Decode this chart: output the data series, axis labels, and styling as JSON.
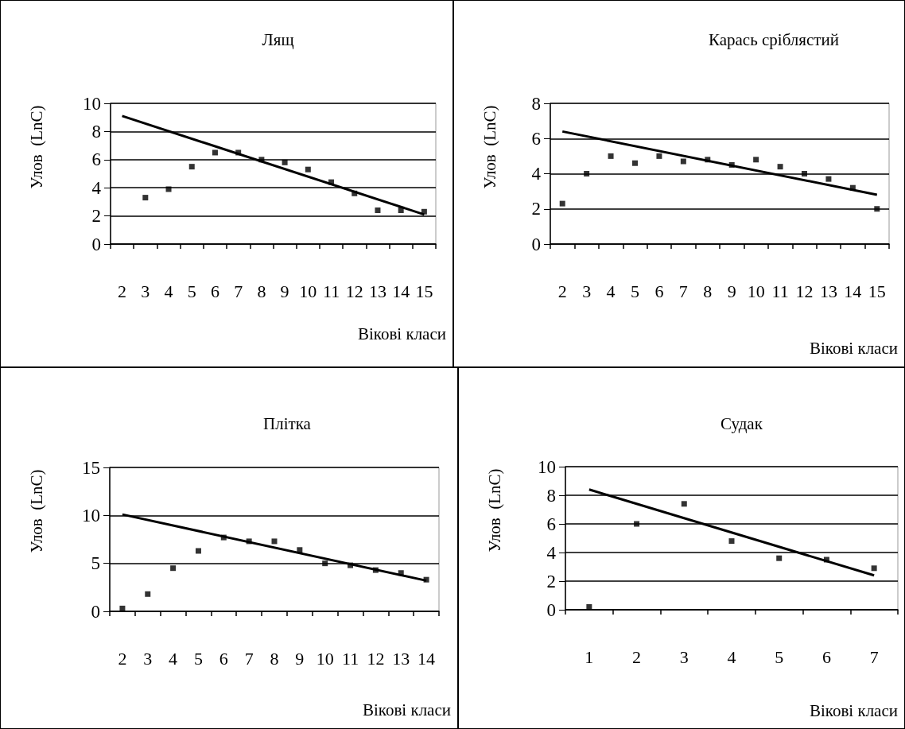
{
  "chart_data": [
    {
      "type": "scatter",
      "title": "Лящ",
      "xlabel": "Вікові класи",
      "ylabel": "Улов  (LnC)",
      "categories": [
        "2",
        "3",
        "4",
        "5",
        "6",
        "7",
        "8",
        "9",
        "10",
        "11",
        "12",
        "13",
        "14",
        "15"
      ],
      "ylim": [
        0,
        10
      ],
      "yticks": [
        0,
        2,
        4,
        6,
        8,
        10
      ],
      "grid": "y",
      "series": [
        {
          "marker": "square",
          "color": "#000000",
          "values": [
            null,
            3.3,
            3.9,
            5.5,
            6.5,
            6.5,
            6.0,
            5.8,
            5.3,
            4.4,
            3.6,
            2.4,
            2.4,
            2.3
          ]
        },
        {
          "type": "line",
          "color": "#000000",
          "x": [
            "2",
            "15"
          ],
          "values": [
            9.1,
            2.1
          ]
        }
      ]
    },
    {
      "type": "scatter",
      "title": "Карась сріблястий",
      "xlabel": "Вікові класи",
      "ylabel": "Улов  (LnC)",
      "categories": [
        "2",
        "3",
        "4",
        "5",
        "6",
        "7",
        "8",
        "9",
        "10",
        "11",
        "12",
        "13",
        "14",
        "15"
      ],
      "ylim": [
        0,
        8
      ],
      "yticks": [
        0,
        2,
        4,
        6,
        8
      ],
      "grid": "y",
      "series": [
        {
          "marker": "square",
          "color": "#000000",
          "values": [
            2.3,
            4.0,
            5.0,
            4.6,
            5.0,
            4.7,
            4.8,
            4.5,
            4.8,
            4.4,
            4.0,
            3.7,
            3.2,
            2.0
          ]
        },
        {
          "type": "line",
          "color": "#000000",
          "x": [
            "2",
            "15"
          ],
          "values": [
            6.4,
            2.8
          ]
        }
      ]
    },
    {
      "type": "scatter",
      "title": "Плітка",
      "xlabel": "Вікові класи",
      "ylabel": "Улов  (LnC)",
      "categories": [
        "2",
        "3",
        "4",
        "5",
        "6",
        "7",
        "8",
        "9",
        "10",
        "11",
        "12",
        "13",
        "14"
      ],
      "ylim": [
        0,
        15
      ],
      "yticks": [
        0,
        5,
        10,
        15
      ],
      "grid": "y",
      "series": [
        {
          "marker": "square",
          "color": "#000000",
          "values": [
            0.3,
            1.8,
            4.5,
            6.3,
            7.7,
            7.3,
            7.3,
            6.4,
            5.0,
            4.8,
            4.3,
            4.0,
            3.3
          ]
        },
        {
          "type": "line",
          "color": "#000000",
          "x": [
            "2",
            "14"
          ],
          "values": [
            10.1,
            3.2
          ]
        }
      ]
    },
    {
      "type": "scatter",
      "title": "Судак",
      "xlabel": "Вікові класи",
      "ylabel": "Улов  (LnC)",
      "categories": [
        "1",
        "2",
        "3",
        "4",
        "5",
        "6",
        "7"
      ],
      "ylim": [
        0,
        10
      ],
      "yticks": [
        0,
        2,
        4,
        6,
        8,
        10
      ],
      "grid": "y",
      "series": [
        {
          "marker": "square",
          "color": "#000000",
          "values": [
            0.2,
            6.0,
            7.4,
            4.8,
            3.6,
            3.5,
            2.9
          ]
        },
        {
          "type": "line",
          "color": "#000000",
          "x": [
            "1",
            "7"
          ],
          "values": [
            8.4,
            2.4
          ]
        }
      ]
    }
  ]
}
